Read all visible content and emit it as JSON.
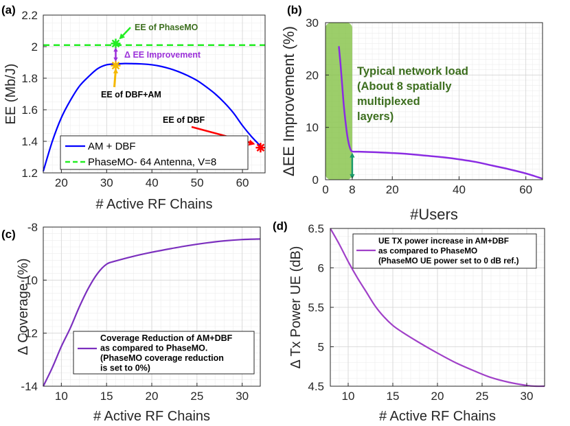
{
  "chart_data": [
    {
      "panel": "(a)",
      "type": "line",
      "xlabel": "# Active RF Chains",
      "ylabel": "EE (Mb/J)",
      "xlim": [
        16,
        65
      ],
      "ylim": [
        1.2,
        2.2
      ],
      "xticks": [
        20,
        30,
        40,
        50,
        60
      ],
      "yticks": [
        1.2,
        1.4,
        1.6,
        1.8,
        2,
        2.2
      ],
      "ytick_labels": [
        "1.2",
        "1.4",
        "1.6",
        "1.8",
        "2",
        "2.2"
      ],
      "grid": true,
      "series": [
        {
          "name": "AM +  DBF",
          "color": "#0000ff",
          "style": "solid",
          "x": [
            16,
            18,
            20,
            22,
            24,
            26,
            28,
            30,
            32,
            34,
            36,
            38,
            40,
            42,
            44,
            46,
            48,
            50,
            52,
            54,
            56,
            58,
            60,
            62,
            64
          ],
          "y": [
            1.21,
            1.4,
            1.55,
            1.66,
            1.75,
            1.81,
            1.86,
            1.885,
            1.89,
            1.893,
            1.892,
            1.89,
            1.885,
            1.875,
            1.86,
            1.84,
            1.815,
            1.785,
            1.745,
            1.7,
            1.645,
            1.58,
            1.5,
            1.43,
            1.37
          ]
        },
        {
          "name": "PhaseMO- 64 Antenna, V=8",
          "color": "#22ee22",
          "style": "dashed",
          "x": [
            16,
            65
          ],
          "y": [
            2.01,
            2.01
          ]
        }
      ],
      "legend_position": "bottom-right",
      "annotations": {
        "ee_phasemo": "EE of PhaseMO",
        "delta_ee": "Δ EE Improvement",
        "ee_dbf_am": "EE of DBF+AM",
        "ee_dbf": "EE of DBF"
      },
      "markers": [
        {
          "x": 32,
          "y": 2.02,
          "color": "#22ee22"
        },
        {
          "x": 32,
          "y": 1.88,
          "color": "#f5b800"
        },
        {
          "x": 64,
          "y": 1.36,
          "color": "#ff0000"
        }
      ]
    },
    {
      "panel": "(b)",
      "type": "line",
      "xlabel": "#Users",
      "ylabel": "ΔEE Improvement (%)",
      "xlim": [
        0,
        65
      ],
      "ylim": [
        0,
        30
      ],
      "xticks": [
        0,
        8,
        20,
        40,
        60
      ],
      "yticks": [
        0,
        10,
        20,
        30
      ],
      "grid": true,
      "shaded_region": {
        "x": [
          0,
          8
        ],
        "color": "#80c040"
      },
      "series": [
        {
          "name": "ΔEE Improvement",
          "color": "#8a2be2",
          "x": [
            4,
            4.5,
            5,
            5.5,
            6,
            6.5,
            7,
            7.5,
            8,
            10,
            15,
            20,
            25,
            30,
            35,
            40,
            45,
            50,
            55,
            60,
            65
          ],
          "y": [
            25.5,
            22,
            18,
            14,
            11,
            8.5,
            6.8,
            5.8,
            5.4,
            5.35,
            5.25,
            5.1,
            4.9,
            4.6,
            4.3,
            3.9,
            3.4,
            2.7,
            2.0,
            1.2,
            0.2
          ]
        }
      ],
      "annotation": [
        "Typical network load",
        "(About 8 spatially",
        "multiplexed",
        "layers)"
      ]
    },
    {
      "panel": "(c)",
      "type": "line",
      "xlabel": "# Active RF Chains",
      "ylabel": "Δ Coverage (%)",
      "xlim": [
        8,
        32
      ],
      "ylim": [
        -14,
        -8
      ],
      "xticks": [
        10,
        15,
        20,
        25,
        30
      ],
      "yticks": [
        -14,
        -12,
        -10,
        -8
      ],
      "grid": true,
      "series": [
        {
          "name": "Coverage Reduction of AM+DBF as compared to PhaseMO. (PhaseMO coverage reduction is set to 0%)",
          "color": "#7b2fbe",
          "x": [
            8,
            9,
            10,
            11,
            12,
            13,
            14,
            15,
            16,
            18,
            20,
            22,
            24,
            26,
            28,
            30,
            32
          ],
          "y": [
            -14.0,
            -13.3,
            -12.5,
            -11.8,
            -11.0,
            -10.3,
            -9.75,
            -9.4,
            -9.28,
            -9.1,
            -8.95,
            -8.82,
            -8.7,
            -8.6,
            -8.52,
            -8.47,
            -8.45
          ]
        }
      ],
      "legend_lines": [
        "Coverage Reduction of AM+DBF",
        "as compared to PhaseMO.",
        "(PhaseMO coverage reduction",
        " is set to 0%)"
      ]
    },
    {
      "panel": "(d)",
      "type": "line",
      "xlabel": "# Active RF Chains",
      "ylabel": "Δ Tx Power UE (dB)",
      "xlim": [
        8,
        32
      ],
      "ylim": [
        4.5,
        6.5
      ],
      "xticks": [
        10,
        15,
        20,
        25,
        30
      ],
      "yticks": [
        4.5,
        5,
        5.5,
        6,
        6.5
      ],
      "grid": true,
      "series": [
        {
          "name": "UE TX power increase in AM+DBF as compared to PhaseMO (PhaseMO UE power set to 0 dB ref.)",
          "color": "#a040c8",
          "x": [
            8,
            9,
            10,
            11,
            12,
            13,
            14,
            15,
            16,
            18,
            20,
            22,
            24,
            26,
            28,
            30,
            31,
            32
          ],
          "y": [
            6.5,
            6.3,
            6.08,
            5.88,
            5.7,
            5.52,
            5.38,
            5.27,
            5.19,
            5.05,
            4.92,
            4.8,
            4.7,
            4.61,
            4.55,
            4.51,
            4.5,
            4.5
          ]
        }
      ],
      "legend_lines": [
        "UE TX power increase in AM+DBF",
        "as compared to PhaseMO",
        "(PhaseMO UE power set to 0 dB ref.)"
      ]
    }
  ],
  "legend_a": {
    "item1": "AM +  DBF",
    "item2": "PhaseMO- 64 Antenna, V=8"
  },
  "colors": {
    "blue": "#0000ff",
    "green_dash": "#22ee22",
    "purple": "#8a2be2",
    "annot_green": "#3c6e1e",
    "annot_purple": "#9b30d9",
    "red": "#ff0000",
    "orange": "#f5b800",
    "teal": "#1a9a6a"
  }
}
